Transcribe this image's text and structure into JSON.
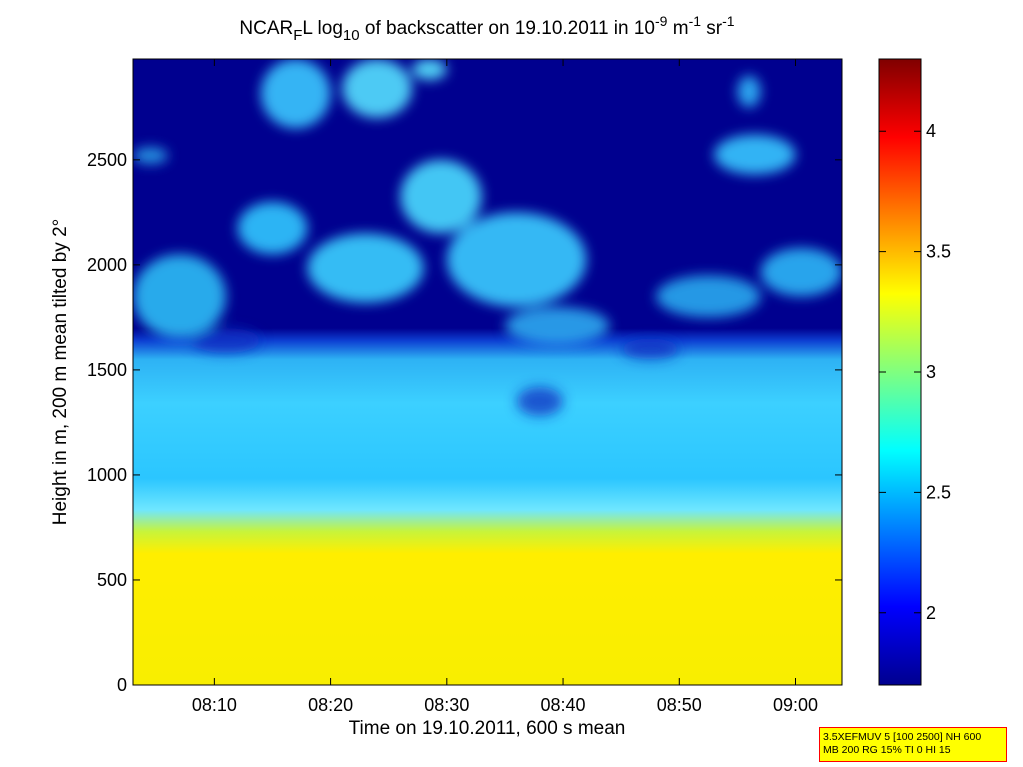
{
  "chart_data": {
    "type": "heatmap",
    "title_parts": {
      "prefix": "NCAR",
      "prefix_sub": "F",
      "mid": "L log",
      "mid_sub": "10",
      "rest": " of backscatter on 19.10.2011 in 10",
      "exp1": "-9",
      "unit1": " m",
      "exp2": "-1",
      "unit2": " sr",
      "exp3": "-1"
    },
    "xlabel": "Time on 19.10.2011, 600 s mean",
    "ylabel": "Height in m, 200 m mean tilted by 2°",
    "xlim": [
      "08:03",
      "09:04"
    ],
    "ylim": [
      0,
      2980
    ],
    "xticks": [
      "08:10",
      "08:20",
      "08:30",
      "08:40",
      "08:50",
      "09:00"
    ],
    "yticks": [
      0,
      500,
      1000,
      1500,
      2000,
      2500
    ],
    "colorbar": {
      "range": [
        1.7,
        4.3
      ],
      "ticks": [
        "2",
        "2.5",
        "3",
        "3.5",
        "4"
      ],
      "colormap": "jet"
    },
    "layers_description_values": {
      "surface_layer_value": 3.3,
      "surface_layer_top_m": 800,
      "mixed_layer_value": 2.6,
      "mixed_layer_top_m": 1650,
      "background_value": 1.7,
      "cloud_layer_value": 2.7
    },
    "grid": false
  },
  "info_box": {
    "line1": "3.5XEFMUV 5 [100 2500] NH 600",
    "line2": "MB 200 RG 15% TI 0 HI 15"
  }
}
